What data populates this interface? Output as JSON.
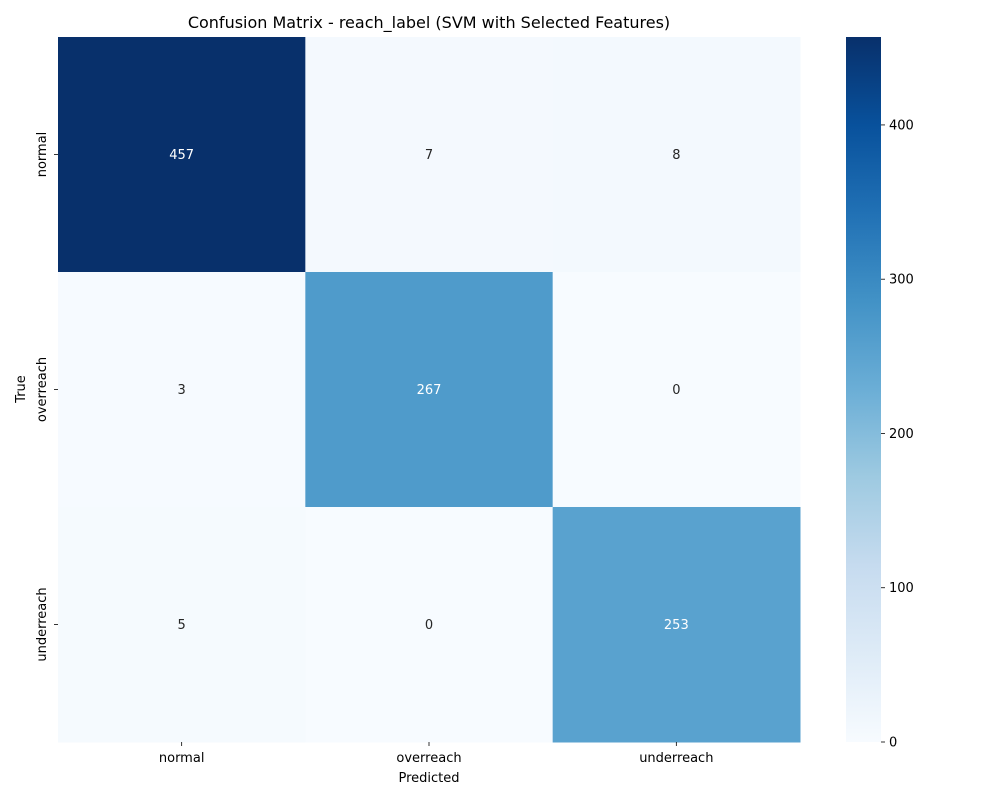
{
  "chart_data": {
    "type": "heatmap",
    "title": "Confusion Matrix - reach_label (SVM with Selected Features)",
    "xlabel": "Predicted",
    "ylabel": "True",
    "x_categories": [
      "normal",
      "overreach",
      "underreach"
    ],
    "y_categories": [
      "normal",
      "overreach",
      "underreach"
    ],
    "values": [
      [
        457,
        7,
        8
      ],
      [
        3,
        267,
        0
      ],
      [
        5,
        0,
        253
      ]
    ],
    "colormap": "Blues",
    "colorbar": {
      "min": 0,
      "max": 457,
      "ticks": [
        0,
        100,
        200,
        300,
        400
      ]
    },
    "annotations": true,
    "grid": false
  },
  "colors": {
    "low": "#f7fbff",
    "high": "#08306b",
    "annotation_light": "#ffffff",
    "annotation_dark": "#262626"
  }
}
